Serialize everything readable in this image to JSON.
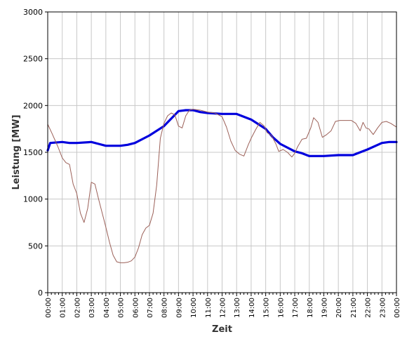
{
  "chart_data": {
    "type": "line",
    "xlabel": "Zeit",
    "ylabel": "Leistung [MW]",
    "ylim": [
      0,
      3000
    ],
    "y_ticks": [
      0,
      500,
      1000,
      1500,
      2000,
      2500,
      3000
    ],
    "x_range": [
      0,
      24
    ],
    "x_tick_labels": [
      "00:00",
      "01:00",
      "02:00",
      "03:00",
      "04:00",
      "05:00",
      "06:00",
      "07:00",
      "08:00",
      "09:00",
      "10:00",
      "11:00",
      "12:00",
      "13:00",
      "14:00",
      "15:00",
      "16:00",
      "17:00",
      "18:00",
      "19:00",
      "20:00",
      "21:00",
      "22:00",
      "23:00",
      "00:00"
    ],
    "grid": true,
    "series": [
      {
        "color": "#0000dd",
        "points": [
          [
            0,
            1520
          ],
          [
            0.17,
            1600
          ],
          [
            1,
            1610
          ],
          [
            1.5,
            1600
          ],
          [
            2,
            1600
          ],
          [
            3,
            1610
          ],
          [
            3.5,
            1590
          ],
          [
            4,
            1570
          ],
          [
            5,
            1570
          ],
          [
            5.5,
            1580
          ],
          [
            6,
            1600
          ],
          [
            7,
            1680
          ],
          [
            8,
            1780
          ],
          [
            9,
            1940
          ],
          [
            9.5,
            1950
          ],
          [
            10,
            1950
          ],
          [
            10.5,
            1930
          ],
          [
            11,
            1920
          ],
          [
            12,
            1910
          ],
          [
            13,
            1910
          ],
          [
            14,
            1850
          ],
          [
            14.5,
            1800
          ],
          [
            15,
            1750
          ],
          [
            15.5,
            1660
          ],
          [
            16,
            1590
          ],
          [
            17,
            1510
          ],
          [
            17.5,
            1490
          ],
          [
            18,
            1460
          ],
          [
            19,
            1460
          ],
          [
            20,
            1470
          ],
          [
            21,
            1470
          ],
          [
            22,
            1530
          ],
          [
            23,
            1600
          ],
          [
            23.5,
            1610
          ],
          [
            24,
            1610
          ]
        ]
      },
      {
        "color": "#9b6058",
        "points": [
          [
            0,
            1800
          ],
          [
            0.3,
            1700
          ],
          [
            0.7,
            1560
          ],
          [
            1,
            1440
          ],
          [
            1.25,
            1390
          ],
          [
            1.5,
            1370
          ],
          [
            1.75,
            1160
          ],
          [
            2,
            1060
          ],
          [
            2.25,
            850
          ],
          [
            2.5,
            750
          ],
          [
            2.75,
            900
          ],
          [
            3,
            1180
          ],
          [
            3.25,
            1160
          ],
          [
            3.5,
            1000
          ],
          [
            3.75,
            850
          ],
          [
            4,
            700
          ],
          [
            4.25,
            540
          ],
          [
            4.5,
            400
          ],
          [
            4.75,
            330
          ],
          [
            5,
            320
          ],
          [
            5.25,
            320
          ],
          [
            5.5,
            325
          ],
          [
            5.75,
            340
          ],
          [
            6,
            380
          ],
          [
            6.25,
            480
          ],
          [
            6.5,
            620
          ],
          [
            6.75,
            690
          ],
          [
            7,
            720
          ],
          [
            7.25,
            850
          ],
          [
            7.5,
            1150
          ],
          [
            7.75,
            1650
          ],
          [
            8,
            1810
          ],
          [
            8.25,
            1890
          ],
          [
            8.5,
            1920
          ],
          [
            8.75,
            1900
          ],
          [
            9,
            1780
          ],
          [
            9.25,
            1760
          ],
          [
            9.5,
            1890
          ],
          [
            9.75,
            1950
          ],
          [
            10,
            1960
          ],
          [
            10.5,
            1950
          ],
          [
            11,
            1930
          ],
          [
            11.5,
            1920
          ],
          [
            12,
            1880
          ],
          [
            12.3,
            1770
          ],
          [
            12.6,
            1620
          ],
          [
            12.9,
            1520
          ],
          [
            13.2,
            1480
          ],
          [
            13.5,
            1460
          ],
          [
            13.8,
            1580
          ],
          [
            14,
            1650
          ],
          [
            14.3,
            1740
          ],
          [
            14.6,
            1820
          ],
          [
            14.9,
            1780
          ],
          [
            15.1,
            1710
          ],
          [
            15.4,
            1680
          ],
          [
            15.7,
            1590
          ],
          [
            15.9,
            1510
          ],
          [
            16.2,
            1530
          ],
          [
            16.5,
            1500
          ],
          [
            16.8,
            1450
          ],
          [
            17,
            1490
          ],
          [
            17.2,
            1560
          ],
          [
            17.5,
            1640
          ],
          [
            17.8,
            1650
          ],
          [
            18.1,
            1760
          ],
          [
            18.3,
            1870
          ],
          [
            18.6,
            1820
          ],
          [
            18.9,
            1660
          ],
          [
            19.2,
            1690
          ],
          [
            19.5,
            1730
          ],
          [
            19.8,
            1830
          ],
          [
            20.1,
            1840
          ],
          [
            20.5,
            1840
          ],
          [
            20.9,
            1840
          ],
          [
            21.2,
            1810
          ],
          [
            21.5,
            1730
          ],
          [
            21.7,
            1820
          ],
          [
            21.9,
            1760
          ],
          [
            22.1,
            1750
          ],
          [
            22.4,
            1690
          ],
          [
            22.7,
            1760
          ],
          [
            23,
            1820
          ],
          [
            23.3,
            1830
          ],
          [
            23.6,
            1810
          ],
          [
            23.9,
            1780
          ],
          [
            24,
            1770
          ]
        ]
      }
    ]
  }
}
